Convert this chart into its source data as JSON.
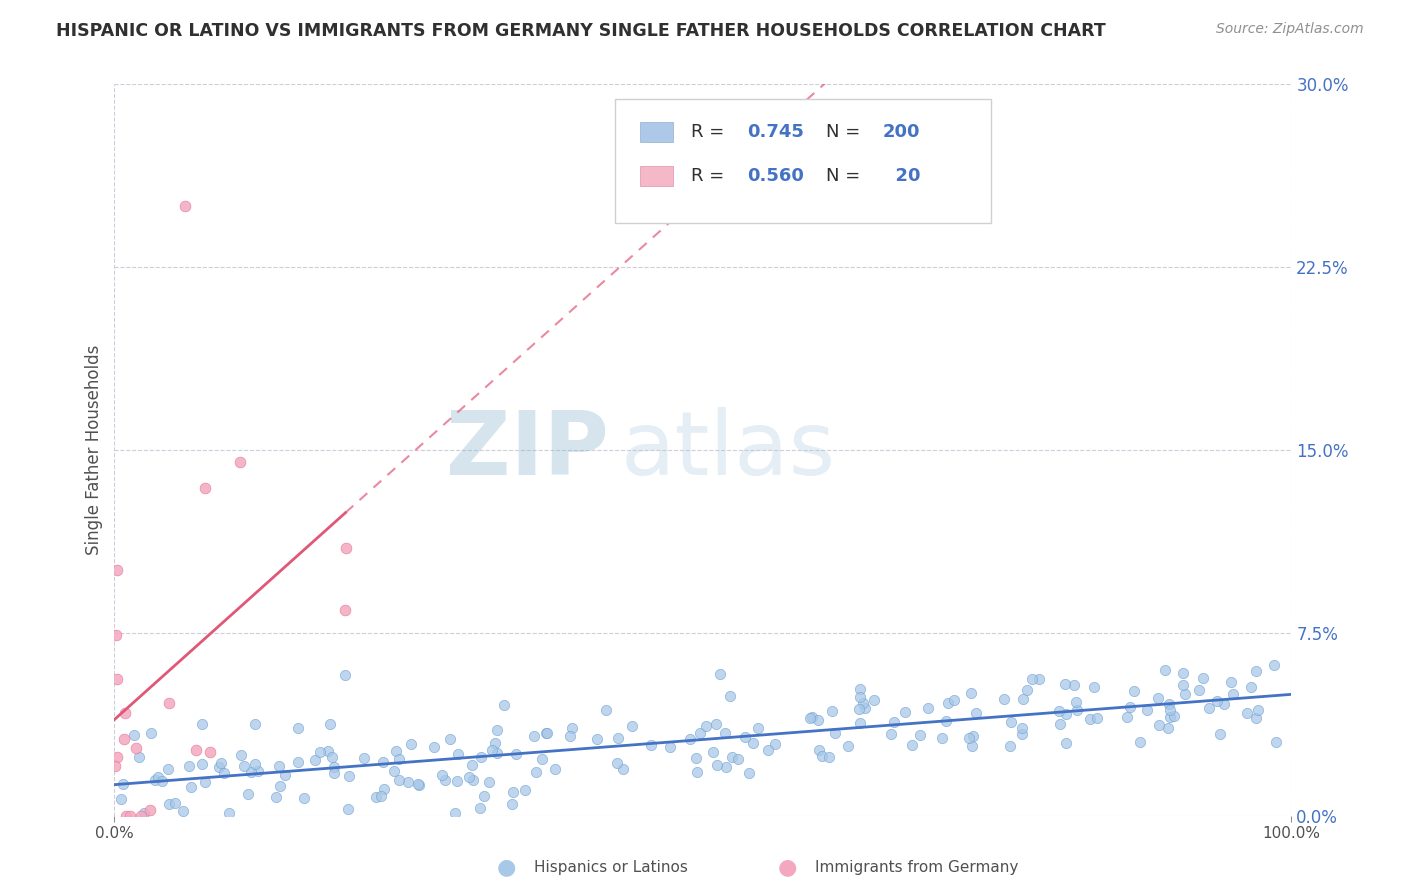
{
  "title": "HISPANIC OR LATINO VS IMMIGRANTS FROM GERMANY SINGLE FATHER HOUSEHOLDS CORRELATION CHART",
  "source": "Source: ZipAtlas.com",
  "ylabel": "Single Father Households",
  "ytick_vals": [
    0.0,
    7.5,
    15.0,
    22.5,
    30.0
  ],
  "xlim": [
    0,
    100
  ],
  "ylim": [
    0,
    30
  ],
  "blue_scatter_color": "#a8c8e8",
  "blue_edge_color": "#6aa0d0",
  "pink_scatter_color": "#f4a8c0",
  "pink_edge_color": "#e87898",
  "blue_line_color": "#4472c4",
  "pink_line_color": "#e05878",
  "background_color": "#ffffff",
  "grid_color": "#c8c8d8",
  "title_color": "#303030",
  "source_color": "#909090",
  "legend_blue_box": "#aec8e8",
  "legend_pink_box": "#f4b8c8",
  "legend_text_dark": "#303030",
  "legend_text_blue": "#4472c4",
  "watermark_zip_color": "#9ab8d0",
  "watermark_atlas_color": "#b0cce0",
  "R_blue": 0.745,
  "N_blue": 200,
  "R_pink": 0.56,
  "N_pink": 20,
  "seed": 42
}
